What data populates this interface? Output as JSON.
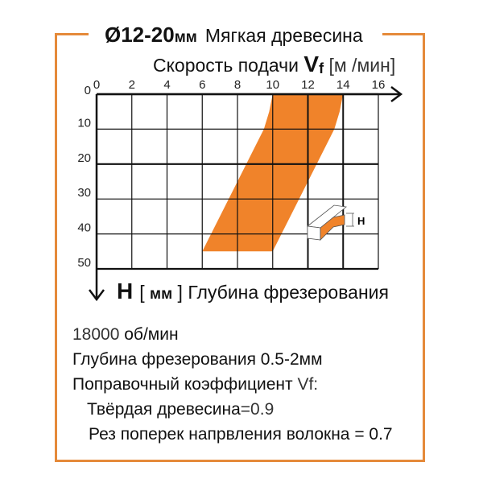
{
  "colors": {
    "accent": "#e58a3a",
    "fill": "#f0832a",
    "grid": "#111111"
  },
  "header": {
    "diameter": "Ø12-20",
    "diameter_unit": "мм",
    "material": "Мягкая древесина"
  },
  "chart_data": {
    "type": "area",
    "title": "Ø12-20 мм Мягкая древесина",
    "xlabel": "Скорость подачи Vf [м /мин]",
    "ylabel": "H [мм] Глубина фрезерования",
    "xlim": [
      0,
      16
    ],
    "ylim": [
      0,
      50
    ],
    "y_inverted": true,
    "grid": true,
    "x_ticks": [
      "0",
      "2",
      "4",
      "6",
      "8",
      "10",
      "12",
      "14",
      "16"
    ],
    "y_ticks": [
      "0",
      "10",
      "20",
      "30",
      "40",
      "50"
    ],
    "region": {
      "left_edge": [
        [
          10,
          0
        ],
        [
          9.8,
          5
        ],
        [
          9.5,
          10
        ],
        [
          6,
          45
        ]
      ],
      "right_edge": [
        [
          14,
          0
        ],
        [
          13.8,
          5
        ],
        [
          13.5,
          10
        ],
        [
          10,
          45
        ]
      ]
    },
    "inset_label": "H"
  },
  "axis": {
    "x_label_text": "Скорость подачи",
    "x_symbol": "V",
    "x_symbol_sub": "f",
    "x_unit": "[м /мин]",
    "y_symbol": "H",
    "y_unit_open": "[",
    "y_unit": "мм",
    "y_unit_close": "]",
    "y_label_text": "Глубина фрезерования"
  },
  "notes": {
    "rpm_value": "18000",
    "rpm_unit": "об/мин",
    "depth": "Глубина фрезерования  0.5-2мм",
    "correction_label": "Поправочный коэффициент",
    "correction_symbol": "Vf:",
    "hardwood_label": "Твёрдая древесина",
    "hardwood_value": "=0.9",
    "cross_grain": "Рез поперек напрвления волокна = 0.7"
  }
}
